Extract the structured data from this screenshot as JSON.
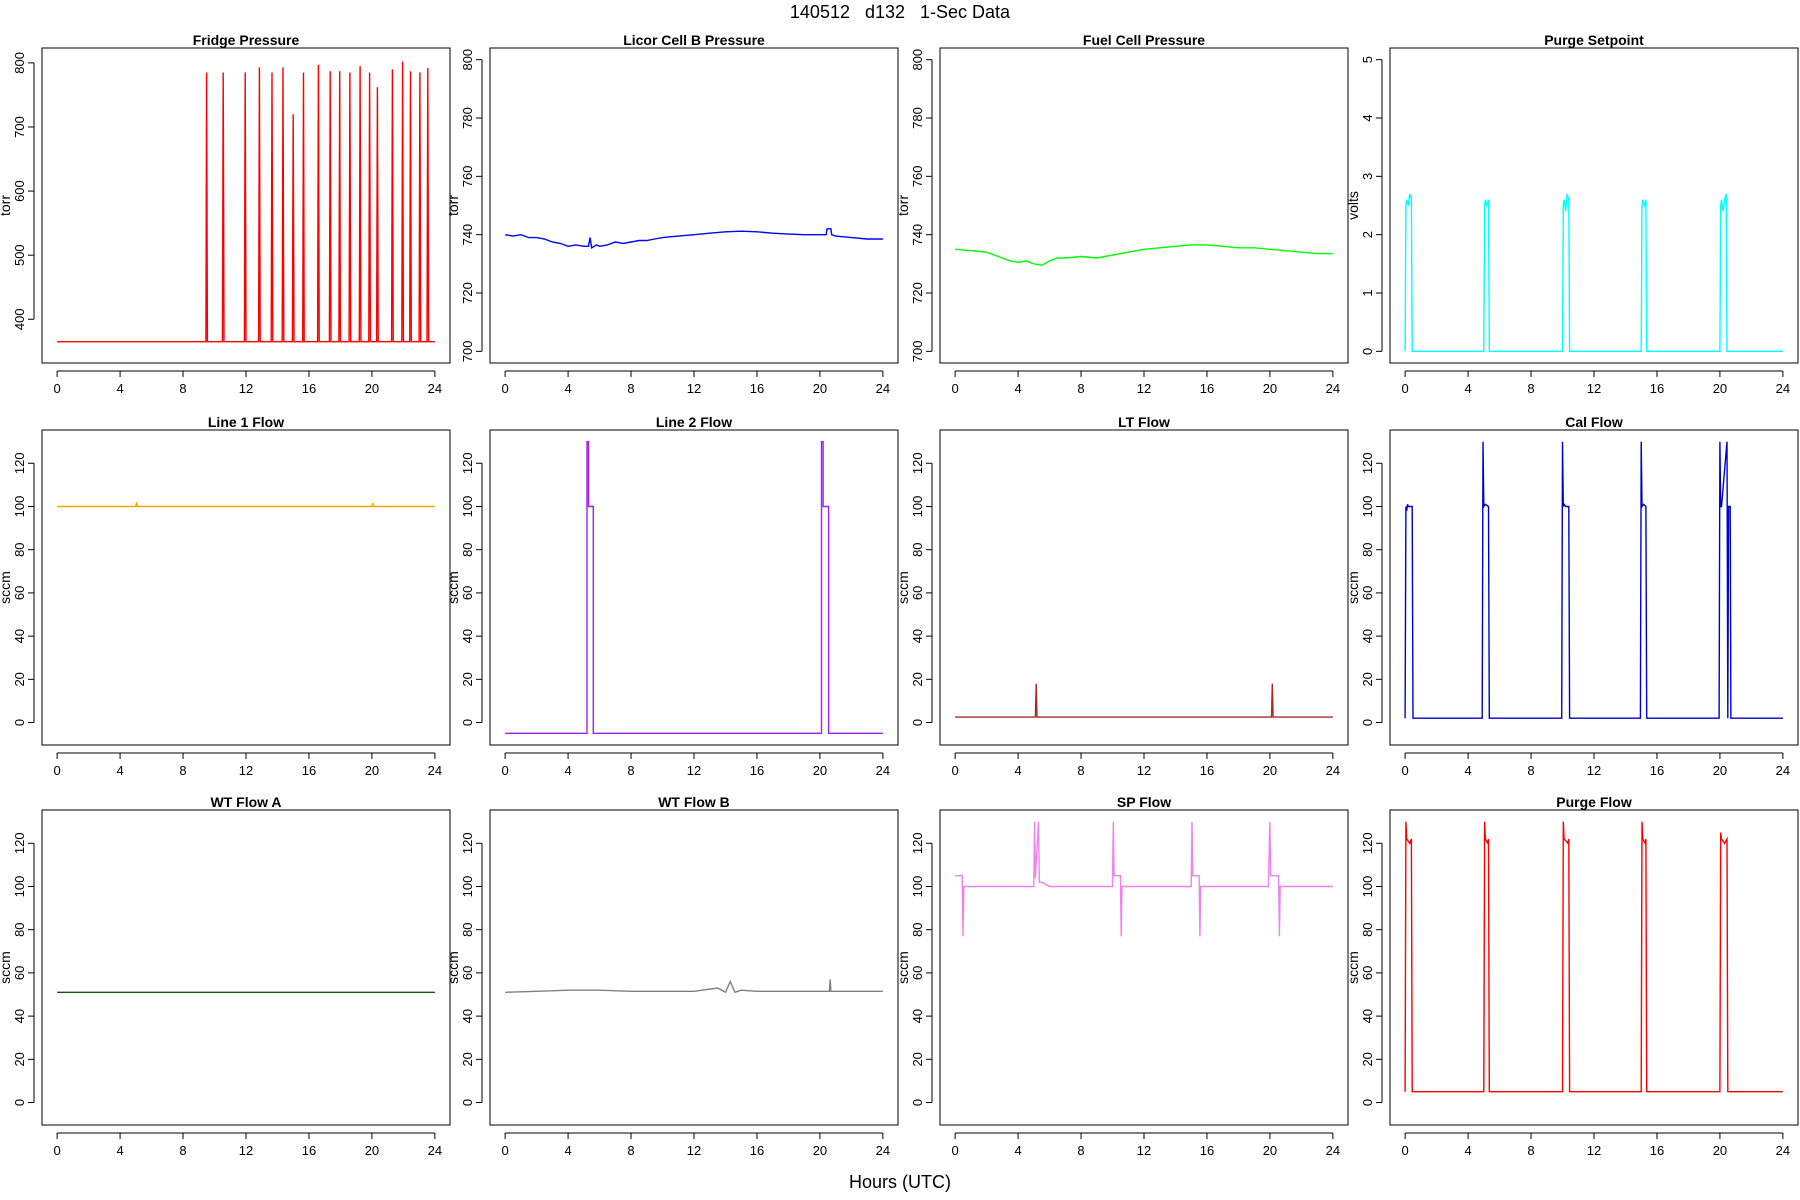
{
  "page": {
    "title": "140512   d132   1-Sec Data",
    "xlabel": "Hours (UTC)"
  },
  "chart_data": [
    {
      "type": "line",
      "title": "Fridge Pressure",
      "ylabel": "torr",
      "xlim": [
        0,
        24
      ],
      "ylim": [
        350,
        805
      ],
      "xticks": [
        0,
        4,
        8,
        12,
        16,
        20,
        24
      ],
      "yticks": [
        400,
        500,
        600,
        700,
        800
      ],
      "color": "#ff0000",
      "x": [
        0,
        9.45,
        9.5,
        9.55,
        10.5,
        10.55,
        10.6,
        11.9,
        11.95,
        12.0,
        12.8,
        12.85,
        12.9,
        13.6,
        13.65,
        13.7,
        14.3,
        14.35,
        14.4,
        14.95,
        15.0,
        15.05,
        15.6,
        15.65,
        15.7,
        16.55,
        16.6,
        16.65,
        17.3,
        17.35,
        17.4,
        17.9,
        17.95,
        18.0,
        18.55,
        18.6,
        18.65,
        19.2,
        19.25,
        19.3,
        19.8,
        19.85,
        19.9,
        20.3,
        20.35,
        20.4,
        21.25,
        21.3,
        21.35,
        21.9,
        21.95,
        22.0,
        22.4,
        22.45,
        22.5,
        23.0,
        23.05,
        23.1,
        23.5,
        23.55,
        23.6,
        24
      ],
      "y": [
        365,
        365,
        785,
        365,
        365,
        785,
        365,
        365,
        785,
        365,
        365,
        793,
        365,
        365,
        785,
        365,
        365,
        793,
        365,
        365,
        720,
        365,
        365,
        785,
        365,
        365,
        797,
        365,
        365,
        787,
        365,
        365,
        787,
        365,
        365,
        785,
        365,
        365,
        795,
        365,
        365,
        785,
        365,
        365,
        762,
        365,
        365,
        790,
        365,
        365,
        802,
        365,
        365,
        787,
        365,
        365,
        785,
        365,
        365,
        792,
        365,
        365
      ]
    },
    {
      "type": "line",
      "title": "Licor Cell B Pressure",
      "ylabel": "torr",
      "xlim": [
        0,
        24
      ],
      "ylim": [
        700,
        800
      ],
      "xticks": [
        0,
        4,
        8,
        12,
        16,
        20,
        24
      ],
      "yticks": [
        700,
        720,
        740,
        760,
        780,
        800
      ],
      "color": "#0000ff",
      "x": [
        0,
        0.5,
        1,
        1.5,
        2,
        2.5,
        3,
        3.5,
        4,
        4.5,
        5,
        5.3,
        5.4,
        5.5,
        5.8,
        6,
        6.5,
        7,
        7.5,
        8,
        8.5,
        9,
        9.5,
        10,
        11,
        12,
        13,
        14,
        15,
        16,
        17,
        18,
        19,
        20,
        20.4,
        20.45,
        20.7,
        20.75,
        21,
        22,
        23,
        24
      ],
      "y": [
        740,
        739.5,
        740,
        739,
        739,
        738.5,
        737.5,
        737,
        736,
        736.5,
        736,
        736,
        739,
        735.5,
        736.5,
        736,
        736.5,
        737.5,
        737,
        737.5,
        738,
        738,
        738.5,
        739,
        739.5,
        740,
        740.5,
        741,
        741.2,
        741,
        740.5,
        740.2,
        740,
        740,
        740,
        742,
        742,
        740,
        739.5,
        739,
        738.5,
        738.5
      ]
    },
    {
      "type": "line",
      "title": "Fuel Cell Pressure",
      "ylabel": "torr",
      "xlim": [
        0,
        24
      ],
      "ylim": [
        700,
        800
      ],
      "xticks": [
        0,
        4,
        8,
        12,
        16,
        20,
        24
      ],
      "yticks": [
        700,
        720,
        740,
        760,
        780,
        800
      ],
      "color": "#00ff00",
      "x": [
        0,
        1,
        2,
        3,
        3.5,
        4,
        4.5,
        5,
        5.5,
        6,
        6.5,
        7,
        8,
        9,
        10,
        11,
        12,
        13,
        14,
        15,
        16,
        17,
        18,
        19,
        20,
        21,
        22,
        23,
        24
      ],
      "y": [
        735,
        734.5,
        734,
        732,
        731,
        730.5,
        731,
        730,
        729.5,
        731,
        732,
        732,
        732.5,
        732,
        733,
        734,
        735,
        735.5,
        736,
        736.5,
        736.5,
        736,
        735.5,
        735.5,
        735,
        734.5,
        734,
        733.5,
        733.5
      ]
    },
    {
      "type": "line",
      "title": "Purge Setpoint",
      "ylabel": "volts",
      "xlim": [
        0,
        24
      ],
      "ylim": [
        0,
        5
      ],
      "xticks": [
        0,
        4,
        8,
        12,
        16,
        20,
        24
      ],
      "yticks": [
        0,
        1,
        2,
        3,
        4,
        5
      ],
      "color": "#00ffff",
      "x": [
        0,
        0.05,
        0.1,
        0.2,
        0.3,
        0.4,
        0.45,
        5.0,
        5.05,
        5.1,
        5.2,
        5.3,
        5.35,
        10.0,
        10.05,
        10.1,
        10.2,
        10.3,
        10.4,
        10.45,
        15.0,
        15.05,
        15.1,
        15.2,
        15.3,
        15.35,
        20.0,
        20.05,
        20.1,
        20.2,
        20.3,
        20.4,
        20.45,
        24
      ],
      "y": [
        0,
        2.5,
        2.6,
        2.5,
        2.7,
        2.6,
        0,
        0,
        2.5,
        2.6,
        2.5,
        2.6,
        0,
        0,
        2.5,
        2.6,
        2.4,
        2.7,
        2.6,
        0,
        0,
        2.5,
        2.6,
        2.5,
        2.6,
        0,
        0,
        2.5,
        2.6,
        2.4,
        2.6,
        2.7,
        0,
        0
      ]
    },
    {
      "type": "line",
      "title": "Line 1 Flow",
      "ylabel": "sccm",
      "xlim": [
        0,
        24
      ],
      "ylim": [
        -5,
        130
      ],
      "xticks": [
        0,
        4,
        8,
        12,
        16,
        20,
        24
      ],
      "yticks": [
        0,
        20,
        40,
        60,
        80,
        100,
        120
      ],
      "color": "#ffa500",
      "x": [
        0,
        5.0,
        5.05,
        5.1,
        20.0,
        20.05,
        20.1,
        24
      ],
      "y": [
        100,
        100,
        102,
        100,
        100,
        101.5,
        100,
        100
      ]
    },
    {
      "type": "line",
      "title": "Line 2 Flow",
      "ylabel": "sccm",
      "xlim": [
        0,
        24
      ],
      "ylim": [
        -5,
        130
      ],
      "xticks": [
        0,
        4,
        8,
        12,
        16,
        20,
        24
      ],
      "yticks": [
        0,
        20,
        40,
        60,
        80,
        100,
        120
      ],
      "color": "#a020f0",
      "x": [
        0,
        5.2,
        5.2,
        5.3,
        5.3,
        5.6,
        5.6,
        20.1,
        20.1,
        20.2,
        20.2,
        20.55,
        20.55,
        24
      ],
      "y": [
        -5,
        -5,
        130,
        130,
        100,
        100,
        -5,
        -5,
        130,
        130,
        100,
        100,
        -5,
        -5
      ]
    },
    {
      "type": "line",
      "title": "LT Flow",
      "ylabel": "sccm",
      "xlim": [
        0,
        24
      ],
      "ylim": [
        -5,
        130
      ],
      "xticks": [
        0,
        4,
        8,
        12,
        16,
        20,
        24
      ],
      "yticks": [
        0,
        20,
        40,
        60,
        80,
        100,
        120
      ],
      "color": "#a52a2a",
      "x": [
        0,
        5.1,
        5.15,
        5.2,
        20.1,
        20.15,
        20.2,
        24
      ],
      "y": [
        2.5,
        2.5,
        18,
        2.5,
        2.5,
        18,
        2.5,
        2.5
      ]
    },
    {
      "type": "line",
      "title": "Cal Flow",
      "ylabel": "sccm",
      "xlim": [
        0,
        24
      ],
      "ylim": [
        -5,
        130
      ],
      "xticks": [
        0,
        4,
        8,
        12,
        16,
        20,
        24
      ],
      "yticks": [
        0,
        20,
        40,
        60,
        80,
        100,
        120
      ],
      "color": "#0000cd",
      "x": [
        0,
        0.05,
        0.1,
        0.15,
        0.2,
        0.3,
        0.45,
        0.5,
        4.9,
        4.95,
        5.0,
        5.1,
        5.3,
        5.35,
        9.95,
        10.0,
        10.05,
        10.1,
        10.2,
        10.4,
        10.45,
        14.95,
        15.0,
        15.05,
        15.15,
        15.3,
        15.35,
        19.95,
        20.0,
        20.05,
        20.1,
        20.45,
        20.5,
        20.55,
        20.65,
        20.7,
        24
      ],
      "y": [
        2,
        100,
        98,
        101,
        100,
        100,
        100,
        2,
        2,
        130,
        100,
        101,
        100,
        2,
        2,
        130,
        100,
        101,
        100,
        100,
        2,
        2,
        130,
        100,
        101,
        100,
        2,
        2,
        130,
        100,
        100,
        130,
        2,
        100,
        100,
        2,
        2
      ]
    },
    {
      "type": "line",
      "title": "WT Flow A",
      "ylabel": "sccm",
      "xlim": [
        0,
        24
      ],
      "ylim": [
        -5,
        130
      ],
      "xticks": [
        0,
        4,
        8,
        12,
        16,
        20,
        24
      ],
      "yticks": [
        0,
        20,
        40,
        60,
        80,
        100,
        120
      ],
      "color": "#006400",
      "x": [
        0,
        4,
        8,
        12,
        16,
        20,
        24
      ],
      "y": [
        51,
        51,
        51,
        51,
        51,
        51,
        51
      ]
    },
    {
      "type": "line",
      "title": "WT Flow B",
      "ylabel": "sccm",
      "xlim": [
        0,
        24
      ],
      "ylim": [
        -5,
        130
      ],
      "xticks": [
        0,
        4,
        8,
        12,
        16,
        20,
        24
      ],
      "yticks": [
        0,
        20,
        40,
        60,
        80,
        100,
        120
      ],
      "color": "#808080",
      "x": [
        0,
        2,
        4,
        6,
        8,
        10,
        12,
        13.5,
        14,
        14.3,
        14.6,
        15,
        16,
        18,
        20,
        20.6,
        20.65,
        20.7,
        22,
        24
      ],
      "y": [
        51,
        51.5,
        52,
        52,
        51.5,
        51.5,
        51.5,
        53,
        51,
        56,
        51,
        52,
        51.5,
        51.5,
        51.5,
        51.5,
        57,
        51.5,
        51.5,
        51.5
      ]
    },
    {
      "type": "line",
      "title": "SP Flow",
      "ylabel": "sccm",
      "xlim": [
        0,
        24
      ],
      "ylim": [
        -5,
        130
      ],
      "xticks": [
        0,
        4,
        8,
        12,
        16,
        20,
        24
      ],
      "yticks": [
        0,
        20,
        40,
        60,
        80,
        100,
        120
      ],
      "color": "#ee82ee",
      "x": [
        0,
        0.45,
        0.5,
        0.55,
        1,
        2,
        3,
        4,
        5,
        5.05,
        5.1,
        5.3,
        5.35,
        5.5,
        6,
        8,
        10,
        10.05,
        10.1,
        10.5,
        10.55,
        10.6,
        11,
        14.5,
        15.0,
        15.05,
        15.1,
        15.5,
        15.55,
        15.6,
        16,
        18,
        19.9,
        20.0,
        20.05,
        20.55,
        20.6,
        20.65,
        21,
        24
      ],
      "y": [
        105,
        105,
        77,
        100,
        100,
        100,
        100,
        100,
        100,
        130,
        104,
        130,
        102,
        102,
        100,
        100,
        100,
        130,
        105,
        105,
        77,
        100,
        100,
        100,
        100,
        130,
        105,
        105,
        77,
        100,
        100,
        100,
        100,
        130,
        105,
        105,
        77,
        100,
        100,
        100
      ]
    },
    {
      "type": "line",
      "title": "Purge Flow",
      "ylabel": "sccm",
      "xlim": [
        0,
        24
      ],
      "ylim": [
        -5,
        130
      ],
      "xticks": [
        0,
        4,
        8,
        12,
        16,
        20,
        24
      ],
      "yticks": [
        0,
        20,
        40,
        60,
        80,
        100,
        120
      ],
      "color": "#ff0000",
      "x": [
        0,
        0.05,
        0.1,
        0.3,
        0.4,
        0.45,
        5.0,
        5.05,
        5.1,
        5.25,
        5.3,
        5.35,
        10.0,
        10.05,
        10.1,
        10.35,
        10.4,
        10.45,
        15.0,
        15.05,
        15.1,
        15.25,
        15.3,
        15.35,
        20.0,
        20.05,
        20.1,
        20.3,
        20.45,
        20.5,
        24
      ],
      "y": [
        5,
        130,
        122,
        120,
        122,
        5,
        5,
        130,
        122,
        120,
        122,
        5,
        5,
        130,
        122,
        120,
        122,
        5,
        5,
        130,
        122,
        120,
        122,
        5,
        5,
        125,
        122,
        120,
        122,
        5,
        5
      ]
    }
  ]
}
